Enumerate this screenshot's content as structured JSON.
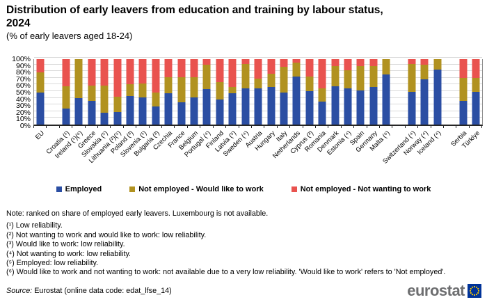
{
  "title": "Distribution of early leavers from education and training by labour status, 2024",
  "subtitle": "(% of early leavers aged 18-24)",
  "chart_data": {
    "type": "bar",
    "stacked": true,
    "grid": true,
    "legend_position": "bottom",
    "ylim": [
      0,
      100
    ],
    "yticks": [
      0,
      10,
      20,
      30,
      40,
      50,
      60,
      70,
      80,
      90,
      100
    ],
    "ytick_suffix": "%",
    "categories": [
      "EU",
      "",
      "Croatia (¹)",
      "Ireland (¹)(⁶)",
      "Greece",
      "Slovakia (⁵)",
      "Lithuania (²)(⁵)",
      "Poland (³)",
      "Slovenia (¹)",
      "Bulgaria (³)",
      "Czechia",
      "France",
      "Belgium",
      "Portugal (⁴)",
      "Finland",
      "Latvia (⁵)",
      "Sweden (⁴)",
      "Austria",
      "Hungary",
      "Italy",
      "Netherlands",
      "Cyprus (³)",
      "Romania",
      "Denmark",
      "Estonia (⁴)",
      "Spain",
      "Germany",
      "Malta (⁶)",
      "",
      "Switzerland (⁴)",
      "Norway (⁴)",
      "Iceland (⁴)",
      "",
      "Serbia",
      "Türkiye"
    ],
    "series": [
      {
        "name": "Employed",
        "color": "#2b4ea3",
        "values": [
          49,
          null,
          24,
          40,
          36,
          18,
          19,
          44,
          42,
          28,
          48,
          34,
          41,
          54,
          38,
          48,
          55,
          55,
          57,
          49,
          73,
          51,
          35,
          59,
          55,
          52,
          57,
          77,
          null,
          50,
          69,
          84,
          null,
          36,
          50
        ]
      },
      {
        "name": "Not employed - Would like to work",
        "color": "#b19220",
        "values": [
          31,
          null,
          35,
          60,
          24,
          42,
          24,
          18,
          21,
          21,
          24,
          38,
          31,
          37,
          27,
          9,
          38,
          15,
          21,
          39,
          22,
          22,
          20,
          30,
          28,
          37,
          32,
          23,
          null,
          43,
          22,
          16,
          null,
          35,
          21
        ]
      },
      {
        "name": "Not employed - Not wanting to work",
        "color": "#e9534f",
        "values": [
          20,
          null,
          41,
          0,
          40,
          40,
          57,
          38,
          37,
          51,
          28,
          28,
          28,
          9,
          35,
          43,
          7,
          30,
          22,
          12,
          5,
          27,
          45,
          11,
          17,
          11,
          11,
          0,
          null,
          7,
          9,
          0,
          null,
          29,
          29
        ]
      }
    ]
  },
  "notes": {
    "main": "Note: ranked on share of employed early leavers. Luxembourg is not available.",
    "footnotes": [
      "(¹) Low reliability.",
      "(²) Not wanting to work and would like to work: low reliability.",
      "(³) Would like to work: low reliability.",
      "(⁴) Not wanting to work: low reliability.",
      "(⁵) Employed: low reliability.",
      "(⁶) Would like to work and not wanting to work: not available due to a very low reliability. 'Would like to work' refers to 'Not employed'."
    ]
  },
  "source": {
    "label": "Source:",
    "text": " Eurostat (online data code: edat_lfse_14)"
  },
  "logo": {
    "text": "eurostat",
    "flag_blue": "#003399",
    "star_yellow": "#ffcc00"
  }
}
